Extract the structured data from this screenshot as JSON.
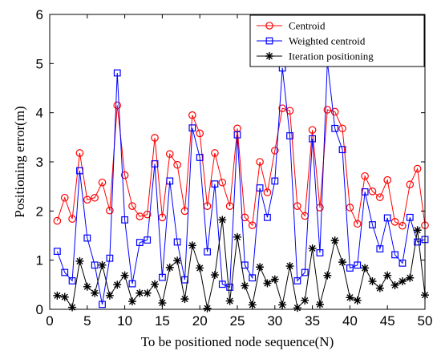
{
  "chart_data": {
    "type": "line",
    "xlabel": "To be positioned node sequence(N)",
    "ylabel": "Positioning error(m)",
    "xlim": [
      0,
      50
    ],
    "ylim": [
      0,
      6
    ],
    "x_ticks": [
      0,
      5,
      10,
      15,
      20,
      25,
      30,
      35,
      40,
      45,
      50
    ],
    "y_ticks": [
      0,
      1,
      2,
      3,
      4,
      5,
      6
    ],
    "grid": false,
    "legend_position": "top-right",
    "x": [
      1,
      2,
      3,
      4,
      5,
      6,
      7,
      8,
      9,
      10,
      11,
      12,
      13,
      14,
      15,
      16,
      17,
      18,
      19,
      20,
      21,
      22,
      23,
      24,
      25,
      26,
      27,
      28,
      29,
      30,
      31,
      32,
      33,
      34,
      35,
      36,
      37,
      38,
      39,
      40,
      41,
      42,
      43,
      44,
      45,
      46,
      47,
      48,
      49,
      50
    ],
    "series": [
      {
        "name": "Centroid",
        "color": "#ff0000",
        "marker": "circle",
        "values": [
          1.8,
          2.27,
          1.84,
          3.18,
          2.23,
          2.27,
          2.58,
          2.01,
          4.15,
          2.73,
          2.1,
          1.89,
          1.93,
          3.49,
          1.87,
          3.16,
          2.94,
          2.0,
          3.95,
          3.58,
          2.1,
          3.18,
          2.58,
          2.1,
          3.68,
          1.87,
          1.71,
          3.0,
          2.38,
          3.23,
          4.09,
          4.04,
          2.1,
          1.9,
          3.65,
          2.07,
          4.06,
          4.02,
          3.68,
          2.07,
          1.74,
          2.71,
          2.4,
          2.28,
          2.63,
          1.78,
          1.7,
          2.54,
          2.86,
          1.71
        ]
      },
      {
        "name": "Weighted centroid",
        "color": "#0000ff",
        "marker": "square",
        "values": [
          1.18,
          0.75,
          0.58,
          2.82,
          1.45,
          0.9,
          0.1,
          1.04,
          4.81,
          1.82,
          0.52,
          1.36,
          1.41,
          2.96,
          0.65,
          2.61,
          1.37,
          0.6,
          3.69,
          3.09,
          1.17,
          2.55,
          0.51,
          0.45,
          3.55,
          0.9,
          0.64,
          2.47,
          1.87,
          2.61,
          4.91,
          3.53,
          0.58,
          0.75,
          3.47,
          1.15,
          5.04,
          3.68,
          3.25,
          0.84,
          0.9,
          2.39,
          1.72,
          1.23,
          1.86,
          1.11,
          0.94,
          1.87,
          1.37,
          1.42
        ]
      },
      {
        "name": "Iteration positioning",
        "color": "#000000",
        "marker": "asterisk",
        "values": [
          0.28,
          0.25,
          0.04,
          0.98,
          0.46,
          0.33,
          0.9,
          0.28,
          0.5,
          0.69,
          0.16,
          0.33,
          0.33,
          0.51,
          0.13,
          0.85,
          0.99,
          0.21,
          1.3,
          0.84,
          0.02,
          0.7,
          1.82,
          0.17,
          1.47,
          0.48,
          0.09,
          0.86,
          0.53,
          0.61,
          0.09,
          0.88,
          0.03,
          0.18,
          1.24,
          0.1,
          0.69,
          1.4,
          0.96,
          0.24,
          0.18,
          0.84,
          0.57,
          0.43,
          0.69,
          0.49,
          0.57,
          0.64,
          1.61,
          0.29
        ]
      }
    ]
  }
}
